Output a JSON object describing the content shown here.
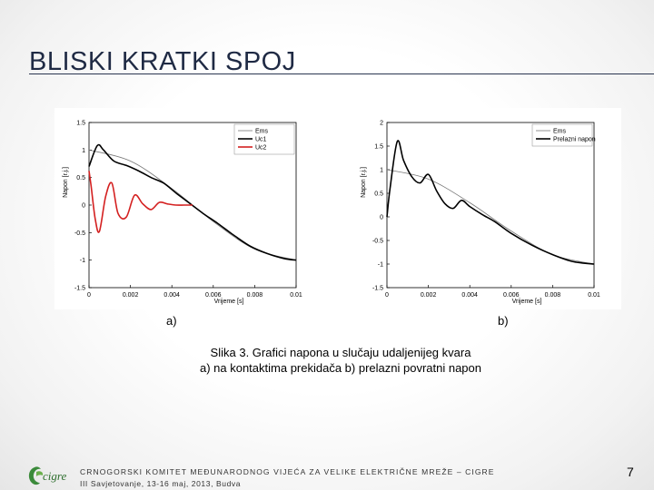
{
  "slide": {
    "title": "BLISKI KRATKI SPOJ",
    "label_a": "a)",
    "label_b": "b)",
    "caption_line1": "Slika 3. Grafici napona u slučaju udaljenijeg kvara",
    "caption_line2": "a) na kontaktima prekidača b) prelazni povratni napon",
    "footer_line1": "CRNOGORSKI KOMITET MEĐUNARODNOG VIJEĆA ZA VELIKE ELEKTRIČNE MREŽE – CIGRE",
    "footer_line2": "III Savjetovanje, 13-16 maj, 2013, Budva",
    "logo_text": "cigre",
    "page_number": "7"
  },
  "chart_data": [
    {
      "type": "line",
      "title": "",
      "xlabel": "Vrijeme [s]",
      "ylabel": "Napon [r.j.]",
      "xlim": [
        0,
        0.01
      ],
      "ylim": [
        -1.5,
        1.5
      ],
      "xticks": [
        "0",
        "0.002",
        "0.004",
        "0.006",
        "0.008",
        "0.01"
      ],
      "yticks": [
        "1.5",
        "1",
        "0.5",
        "0",
        "-0.5",
        "-1",
        "-1.5"
      ],
      "legend": "top-right",
      "series": [
        {
          "name": "Ems",
          "color": "#777777",
          "x": [
            0,
            0.002,
            0.004,
            0.006,
            0.008,
            0.01
          ],
          "y": [
            1.0,
            0.8,
            0.3,
            -0.3,
            -0.8,
            -1.0
          ]
        },
        {
          "name": "Uc1",
          "color": "#000000",
          "x": [
            0,
            0.0004,
            0.0007,
            0.0012,
            0.0018,
            0.0024,
            0.003,
            0.0036,
            0.0042,
            0.0048,
            0.0055,
            0.0062,
            0.007,
            0.0078,
            0.0086,
            0.0094,
            0.01
          ],
          "y": [
            0.7,
            1.08,
            1.0,
            0.8,
            0.72,
            0.62,
            0.5,
            0.4,
            0.22,
            0.05,
            -0.15,
            -0.33,
            -0.55,
            -0.75,
            -0.88,
            -0.97,
            -1.0
          ]
        },
        {
          "name": "Uc2",
          "color": "#d42020",
          "x": [
            0,
            0.0001,
            0.0003,
            0.0005,
            0.0008,
            0.0011,
            0.0014,
            0.0018,
            0.0022,
            0.0026,
            0.003,
            0.0034,
            0.0038,
            0.0042,
            0.0046,
            0.005
          ],
          "y": [
            0.62,
            0.35,
            -0.25,
            -0.48,
            0.15,
            0.4,
            -0.15,
            -0.22,
            0.18,
            0.02,
            -0.08,
            0.05,
            0.02,
            0.0,
            0.0,
            0.0
          ]
        }
      ]
    },
    {
      "type": "line",
      "title": "",
      "xlabel": "Vrijeme [s]",
      "ylabel": "Napon [r.j.]",
      "xlim": [
        0,
        0.01
      ],
      "ylim": [
        -1.5,
        2
      ],
      "xticks": [
        "0",
        "0.002",
        "0.004",
        "0.006",
        "0.008",
        "0.01"
      ],
      "yticks": [
        "2",
        "1.5",
        "1",
        "0.5",
        "0",
        "-0.5",
        "-1",
        "-1.5"
      ],
      "legend": "top-right",
      "series": [
        {
          "name": "Ems",
          "color": "#777777",
          "x": [
            0,
            0.002,
            0.004,
            0.006,
            0.008,
            0.01
          ],
          "y": [
            1.0,
            0.8,
            0.3,
            -0.3,
            -0.8,
            -1.0
          ]
        },
        {
          "name": "Prelazni napon",
          "color": "#000000",
          "x": [
            0,
            0.00015,
            0.0005,
            0.0008,
            0.0012,
            0.0016,
            0.002,
            0.0024,
            0.0028,
            0.0032,
            0.0036,
            0.004,
            0.0046,
            0.0052,
            0.006,
            0.007,
            0.008,
            0.009,
            0.01
          ],
          "y": [
            0.0,
            0.6,
            1.6,
            1.2,
            0.85,
            0.72,
            0.9,
            0.55,
            0.28,
            0.18,
            0.35,
            0.22,
            0.05,
            -0.1,
            -0.35,
            -0.6,
            -0.8,
            -0.95,
            -1.0
          ]
        }
      ]
    }
  ]
}
